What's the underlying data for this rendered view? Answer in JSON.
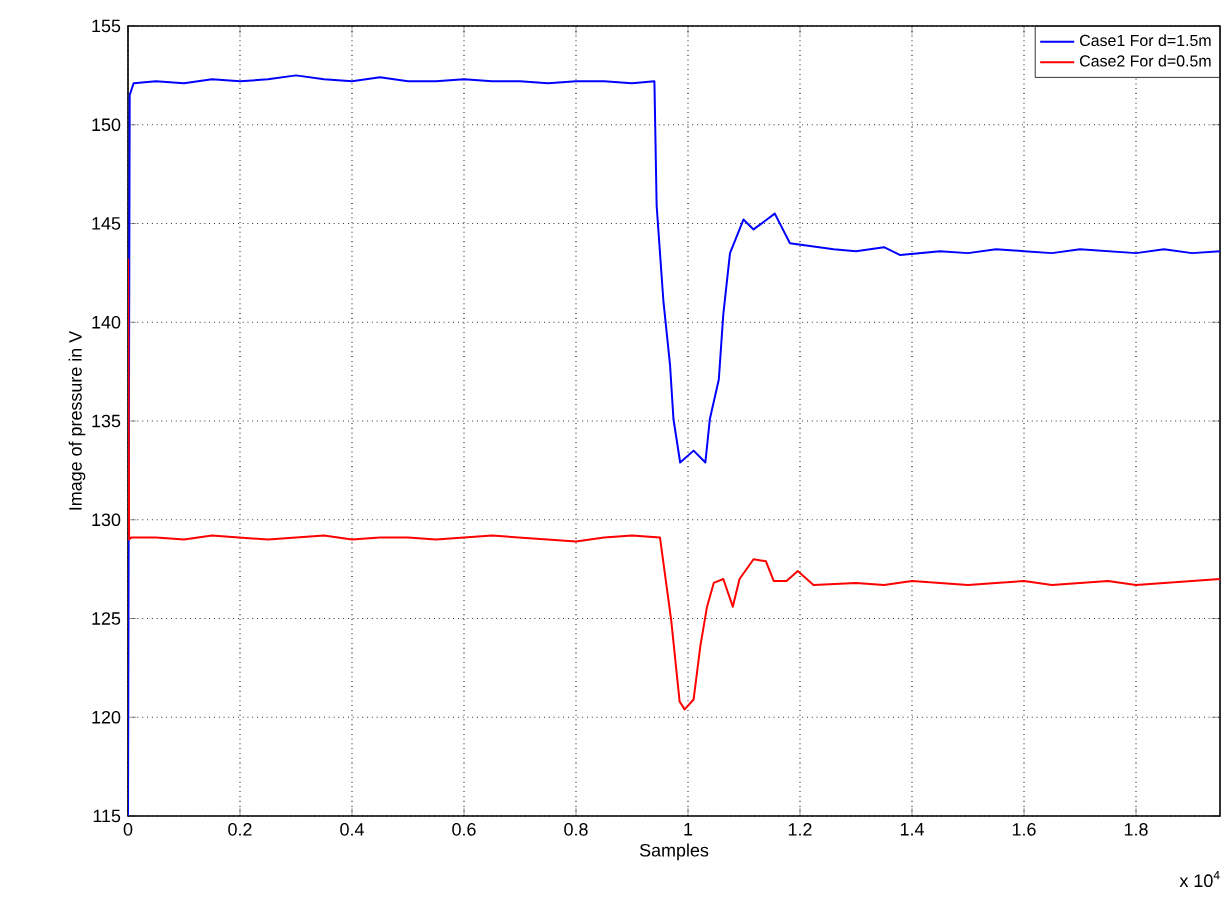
{
  "chart_data": {
    "type": "line",
    "xlabel": "Samples",
    "ylabel": "Image of pressure in V",
    "xlim": [
      0,
      1.95
    ],
    "ylim": [
      115,
      155
    ],
    "xticks": [
      0,
      0.2,
      0.4,
      0.6,
      0.8,
      1,
      1.2,
      1.4,
      1.6,
      1.8
    ],
    "yticks": [
      115,
      120,
      125,
      130,
      135,
      140,
      145,
      150,
      155
    ],
    "grid": true,
    "legend": "top right",
    "annotations": [
      "x 10$^{4}$"
    ],
    "series": [
      {
        "name": "Case1 For d=1.5m",
        "color": "#0000ff",
        "x": [
          0,
          0.003,
          0.01,
          0.05,
          0.1,
          0.15,
          0.2,
          0.25,
          0.3,
          0.35,
          0.4,
          0.45,
          0.5,
          0.55,
          0.6,
          0.65,
          0.7,
          0.75,
          0.8,
          0.85,
          0.9,
          0.94,
          0.944,
          0.956,
          0.968,
          0.974,
          0.986,
          1.01,
          1.031,
          1.039,
          1.055,
          1.063,
          1.075,
          1.099,
          1.117,
          1.155,
          1.182,
          1.26,
          1.3,
          1.35,
          1.379,
          1.45,
          1.5,
          1.55,
          1.6,
          1.65,
          1.7,
          1.75,
          1.8,
          1.85,
          1.9,
          1.95
        ],
        "values": [
          115,
          151.5,
          152.1,
          152.2,
          152.1,
          152.3,
          152.2,
          152.3,
          152.5,
          152.3,
          152.2,
          152.4,
          152.2,
          152.2,
          152.3,
          152.2,
          152.2,
          152.1,
          152.2,
          152.2,
          152.1,
          152.2,
          145.9,
          141.1,
          137.8,
          135.1,
          132.9,
          133.5,
          132.9,
          135.1,
          137.1,
          140.4,
          143.5,
          145.2,
          144.7,
          145.5,
          144.0,
          143.7,
          143.6,
          143.8,
          143.4,
          143.6,
          143.5,
          143.7,
          143.6,
          143.5,
          143.7,
          143.6,
          143.5,
          143.7,
          143.5,
          143.6
        ]
      },
      {
        "name": "Case2 For d=0.5m",
        "color": "#ff0000",
        "x": [
          0,
          0.002,
          0.006,
          0.05,
          0.1,
          0.15,
          0.2,
          0.25,
          0.3,
          0.35,
          0.4,
          0.45,
          0.5,
          0.55,
          0.6,
          0.65,
          0.7,
          0.75,
          0.8,
          0.85,
          0.9,
          0.95,
          0.97,
          0.985,
          0.994,
          1.01,
          1.022,
          1.034,
          1.046,
          1.063,
          1.08,
          1.092,
          1.117,
          1.139,
          1.153,
          1.176,
          1.196,
          1.224,
          1.3,
          1.35,
          1.4,
          1.45,
          1.5,
          1.55,
          1.6,
          1.65,
          1.7,
          1.75,
          1.8,
          1.85,
          1.9,
          1.95
        ],
        "values": [
          143.2,
          129.0,
          129.1,
          129.1,
          129.0,
          129.2,
          129.1,
          129.0,
          129.1,
          129.2,
          129.0,
          129.1,
          129.1,
          129.0,
          129.1,
          129.2,
          129.1,
          129.0,
          128.9,
          129.1,
          129.2,
          129.1,
          124.9,
          120.8,
          120.4,
          120.9,
          123.6,
          125.6,
          126.8,
          127.0,
          125.6,
          127.0,
          128.0,
          127.9,
          126.9,
          126.9,
          127.4,
          126.7,
          126.8,
          126.7,
          126.9,
          126.8,
          126.7,
          126.8,
          126.9,
          126.7,
          126.8,
          126.9,
          126.7,
          126.8,
          126.9,
          127.0
        ]
      }
    ]
  }
}
